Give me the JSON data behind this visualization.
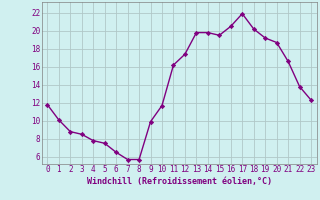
{
  "x": [
    0,
    1,
    2,
    3,
    4,
    5,
    6,
    7,
    8,
    9,
    10,
    11,
    12,
    13,
    14,
    15,
    16,
    17,
    18,
    19,
    20,
    21,
    22,
    23
  ],
  "y": [
    11.8,
    10.1,
    8.8,
    8.5,
    7.8,
    7.5,
    6.5,
    5.7,
    5.7,
    9.9,
    11.7,
    16.2,
    17.4,
    19.8,
    19.8,
    19.5,
    20.5,
    21.9,
    20.2,
    19.2,
    18.7,
    16.6,
    13.8,
    12.3
  ],
  "line_color": "#800080",
  "marker": "D",
  "markersize": 2.2,
  "linewidth": 1.0,
  "bg_color": "#d0f0f0",
  "grid_color": "#b0c8c8",
  "xlabel": "Windchill (Refroidissement éolien,°C)",
  "xlabel_color": "#800080",
  "xlabel_fontsize": 6.0,
  "tick_color": "#800080",
  "tick_fontsize": 5.5,
  "yticks": [
    6,
    8,
    10,
    12,
    14,
    16,
    18,
    20,
    22
  ],
  "ylim": [
    5.2,
    23.2
  ],
  "xlim": [
    -0.5,
    23.5
  ]
}
